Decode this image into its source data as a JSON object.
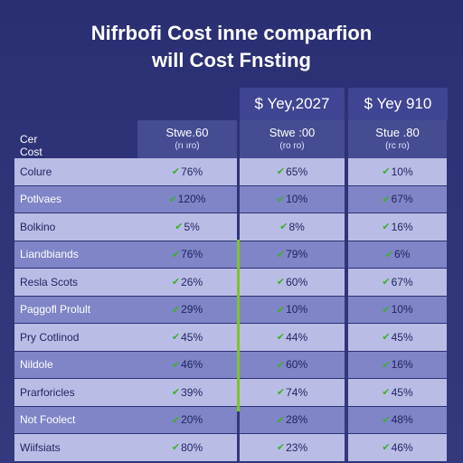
{
  "title_line1": "Nifrbofi Cost inne comparfion",
  "title_line2": "will Cost Fnsting",
  "columns": {
    "col2_header": "$ Yey,2027",
    "col3_header": "$ Yey 910"
  },
  "subheader": {
    "row_label": "Cer Cost",
    "c1_top": "Stwe.60",
    "c1_sub": "(rı ıro)",
    "c2_top": "Stwe :00",
    "c2_sub": "(ro ro)",
    "c3_top": "Stue .80",
    "c3_sub": "(rc ro)"
  },
  "rows": [
    {
      "label": "Colure",
      "v1": "76%",
      "v2": "65%",
      "v3": "10%"
    },
    {
      "label": "Potlvaes",
      "v1": "120%",
      "v2": "10%",
      "v3": "67%"
    },
    {
      "label": "Bolkino",
      "v1": "5%",
      "v2": "8%",
      "v3": "16%"
    },
    {
      "label": "Liandbiands",
      "v1": "76%",
      "v2": "79%",
      "v3": "6%"
    },
    {
      "label": "Resla Scots",
      "v1": "26%",
      "v2": "60%",
      "v3": "67%"
    },
    {
      "label": "Paggofl Prolult",
      "v1": "29%",
      "v2": "10%",
      "v3": "10%"
    },
    {
      "label": "Pry Cotlinod",
      "v1": "45%",
      "v2": "44%",
      "v3": "45%"
    },
    {
      "label": "Nildole",
      "v1": "46%",
      "v2": "60%",
      "v3": "16%"
    },
    {
      "label": "Prarforicles",
      "v1": "39%",
      "v2": "74%",
      "v3": "45%"
    },
    {
      "label": "Not Foolect",
      "v1": "20%",
      "v2": "28%",
      "v3": "48%"
    },
    {
      "label": "Wiifsiats",
      "v1": "80%",
      "v2": "23%",
      "v3": "46%"
    }
  ],
  "colors": {
    "accent": "#7cc52a",
    "check": "#3fae2a",
    "background": "#2f3378"
  }
}
